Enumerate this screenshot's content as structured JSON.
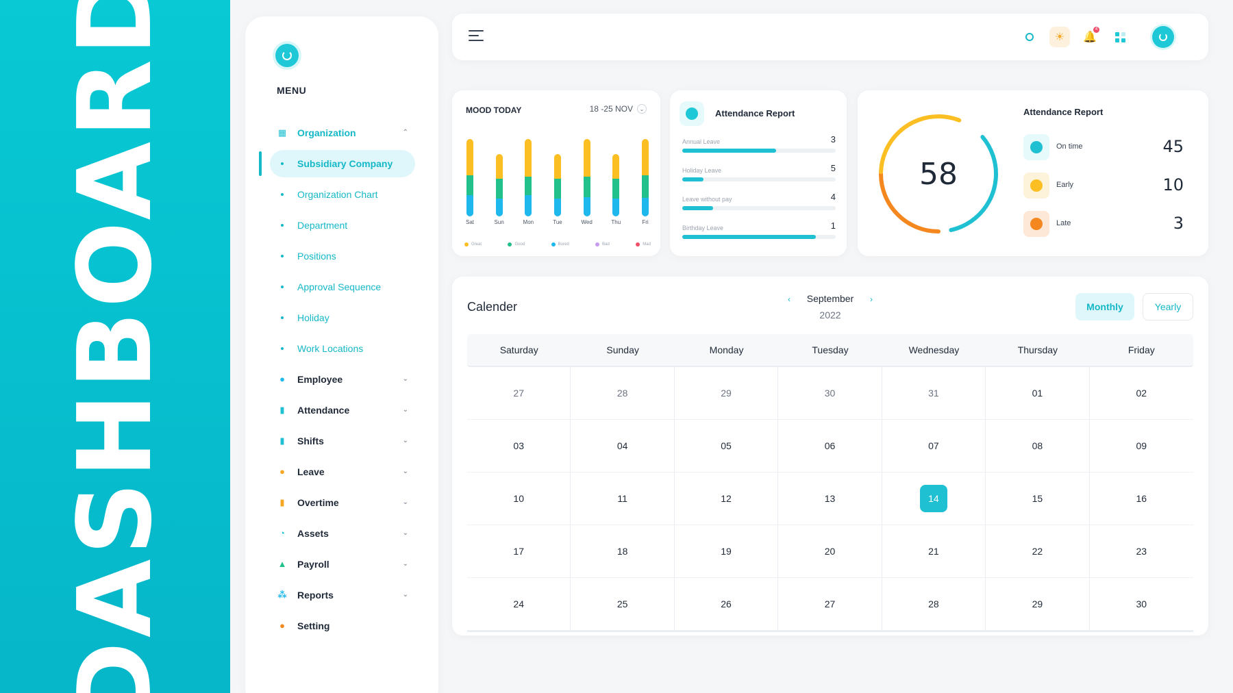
{
  "banner": {
    "text": "DASHBOARD"
  },
  "colors": {
    "accent": "#1fc0d2",
    "yellow": "#fbbf24",
    "green": "#22c08a",
    "blue": "#1fb8ec",
    "orange": "#f5871f"
  },
  "sidebar": {
    "menu_title": "MENU",
    "items": [
      {
        "label": "Organization",
        "icon": "organization-icon",
        "expanded": true,
        "children": [
          "Subsidiary Company",
          "Organization Chart",
          "Department",
          "Positions",
          "Approval Sequence",
          "Holiday",
          "Work Locations"
        ]
      },
      {
        "label": "Employee",
        "icon": "employee-icon"
      },
      {
        "label": "Attendance",
        "icon": "attendance-icon"
      },
      {
        "label": "Shifts",
        "icon": "shifts-icon"
      },
      {
        "label": "Leave",
        "icon": "leave-icon"
      },
      {
        "label": "Overtime",
        "icon": "overtime-icon"
      },
      {
        "label": "Assets",
        "icon": "assets-icon"
      },
      {
        "label": "Payroll",
        "icon": "payroll-icon"
      },
      {
        "label": "Reports",
        "icon": "reports-icon"
      },
      {
        "label": "Setting",
        "icon": "setting-icon"
      }
    ],
    "active_child": "Subsidiary Company"
  },
  "topbar": {
    "notification_count": "4"
  },
  "mood": {
    "title": "MOOD TODAY",
    "range": "18 -25 NOV",
    "legend": [
      "Great",
      "Good",
      "Bored",
      "Bad",
      "Mad"
    ],
    "legend_colors": [
      "#fbbf24",
      "#22c08a",
      "#1fb8ec",
      "#c79bf0",
      "#ef4f6b"
    ]
  },
  "chart_data": {
    "type": "bar",
    "stacked": true,
    "categories": [
      "Sat",
      "Sun",
      "Mon",
      "Tue",
      "Wed",
      "Thu",
      "Fri"
    ],
    "series": [
      {
        "name": "Great",
        "values": [
          45,
          30,
          47,
          30,
          47,
          30,
          45
        ]
      },
      {
        "name": "Good",
        "values": [
          25,
          25,
          23,
          25,
          25,
          25,
          28
        ]
      },
      {
        "name": "Bored",
        "values": [
          26,
          22,
          26,
          22,
          24,
          22,
          23
        ]
      }
    ]
  },
  "attendance_report_1": {
    "title": "Attendance Report",
    "rows": [
      {
        "label": "Annual Leave",
        "value": "3",
        "fill": 0.61
      },
      {
        "label": "Holiday Leave",
        "value": "5",
        "fill": 0.14
      },
      {
        "label": "Leave without pay",
        "value": "4",
        "fill": 0.2
      },
      {
        "label": "Birthday Leave",
        "value": "1",
        "fill": 0.87
      }
    ]
  },
  "attendance_report_2": {
    "title": "Attendance Report",
    "total": "58",
    "stats": [
      {
        "label": "On time",
        "value": "45",
        "color": "#1fc0d2",
        "bg": "#e6f9fb"
      },
      {
        "label": "Early",
        "value": "10",
        "color": "#fbbf24",
        "bg": "#fdf3da"
      },
      {
        "label": "Late",
        "value": "3",
        "color": "#f5871f",
        "bg": "#fde8d8"
      }
    ]
  },
  "calendar": {
    "title": "Calender",
    "month": "September",
    "year": "2022",
    "toggle_monthly": "Monthly",
    "toggle_yearly": "Yearly",
    "weekdays": [
      "Saturday",
      "Sunday",
      "Monday",
      "Tuesday",
      "Wednesday",
      "Thursday",
      "Friday"
    ],
    "days": [
      "27",
      "28",
      "29",
      "30",
      "31",
      "01",
      "02",
      "03",
      "04",
      "05",
      "06",
      "07",
      "08",
      "09",
      "10",
      "11",
      "12",
      "13",
      "14",
      "15",
      "16",
      "17",
      "18",
      "19",
      "20",
      "21",
      "22",
      "23",
      "24",
      "25",
      "26",
      "27",
      "28",
      "29",
      "30"
    ],
    "muted_count": 5,
    "today": "14"
  }
}
